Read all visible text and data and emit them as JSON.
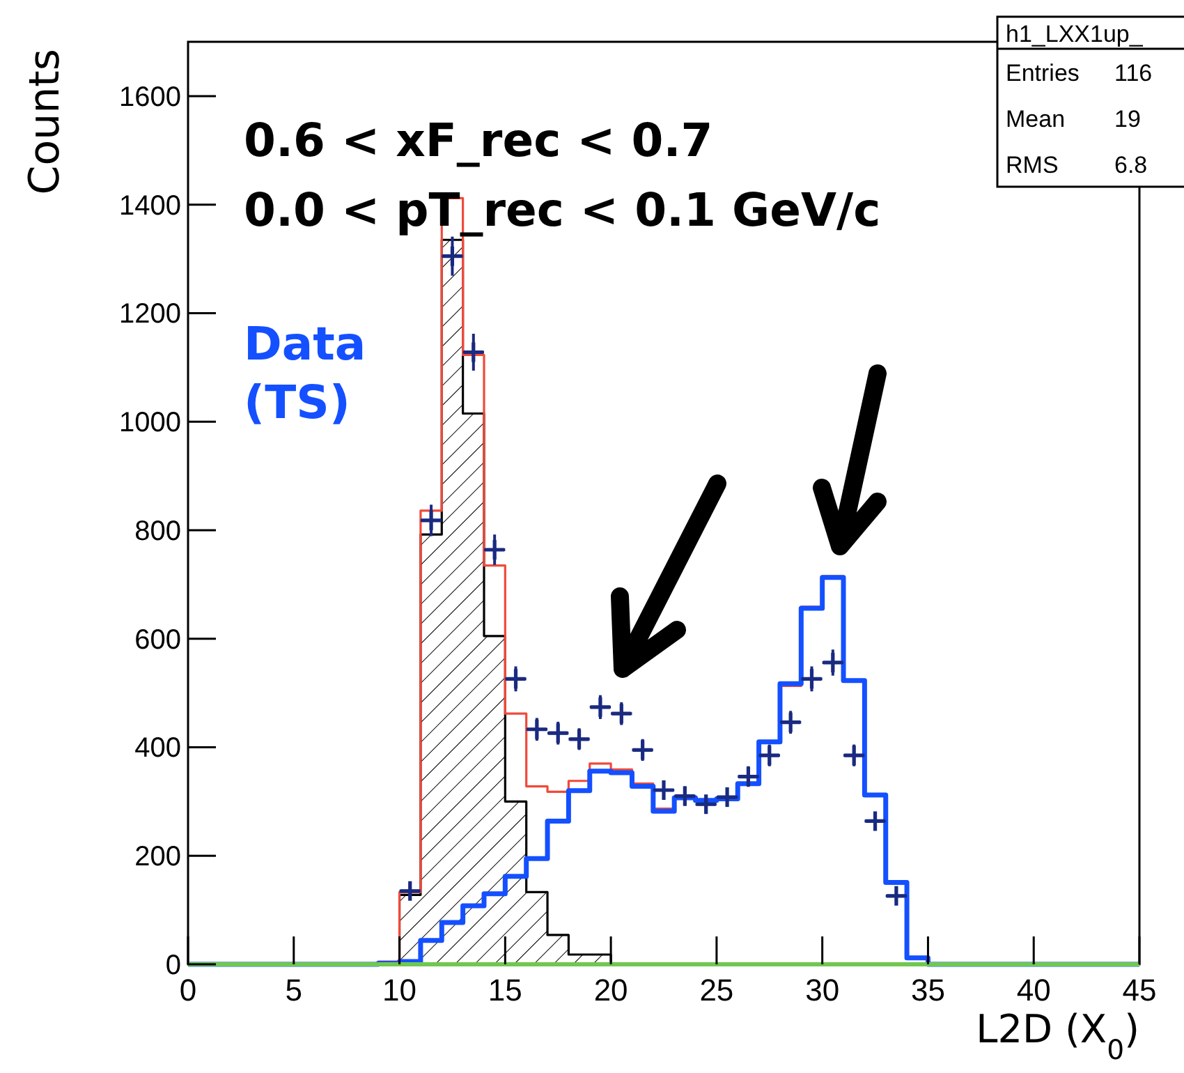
{
  "chart_data": {
    "type": "histogram",
    "xlabel": "L2D (X$_{0}$)",
    "ylabel": "Counts",
    "bins": [
      0,
      1,
      2,
      3,
      4,
      5,
      6,
      7,
      8,
      9,
      10,
      11,
      12,
      13,
      14,
      15,
      16,
      17,
      18,
      19,
      20,
      21,
      22,
      23,
      24,
      25,
      26,
      27,
      28,
      29,
      30,
      31,
      32,
      33,
      34,
      35,
      36,
      37,
      38,
      39,
      40,
      41,
      42,
      43,
      44,
      45
    ],
    "xlim": [
      0,
      45
    ],
    "xticks": [
      0,
      5,
      10,
      15,
      20,
      25,
      30,
      35,
      40,
      45
    ],
    "ylim": [
      0,
      1700
    ],
    "yticks": [
      0,
      200,
      400,
      600,
      800,
      1000,
      1200,
      1400,
      1600
    ],
    "grid": false,
    "series": [
      {
        "color": "#000000",
        "values": [
          0,
          0,
          0,
          0,
          0,
          0,
          0,
          0,
          0,
          3,
          128,
          792,
          1335,
          1015,
          605,
          300,
          133,
          54,
          18,
          18,
          0,
          0,
          0,
          0,
          0,
          0,
          0,
          0,
          0,
          0,
          0,
          0,
          0,
          0,
          0,
          0,
          0,
          0,
          0,
          0,
          0,
          0,
          0,
          0,
          0
        ]
      },
      {
        "color": "#f04a3a",
        "values": [
          0,
          0,
          0,
          0,
          0,
          0,
          0,
          0,
          0,
          5,
          133,
          836,
          1412,
          1123,
          735,
          462,
          328,
          318,
          338,
          370,
          359,
          333,
          287,
          308,
          302,
          305,
          333,
          410,
          513,
          659,
          715,
          523,
          313,
          151,
          10,
          0,
          0,
          0,
          0,
          0,
          0,
          0,
          0,
          0,
          0
        ]
      },
      {
        "color": "#1450ff",
        "values": [
          0,
          0,
          0,
          0,
          0,
          0,
          0,
          0,
          0,
          2,
          5,
          44,
          77,
          108,
          130,
          162,
          195,
          264,
          320,
          356,
          353,
          328,
          282,
          307,
          302,
          305,
          333,
          410,
          517,
          656,
          713,
          523,
          312,
          151,
          12,
          0,
          0,
          0,
          0,
          0,
          0,
          0,
          0,
          0,
          0
        ]
      },
      {
        "color": "#70c850",
        "values": [
          0,
          0,
          0,
          0,
          0,
          0,
          0,
          0,
          0,
          0,
          0,
          0,
          0,
          0,
          0,
          0,
          0,
          0,
          0,
          0,
          0,
          0,
          0,
          0,
          0,
          0,
          0,
          0,
          0,
          0,
          0,
          0,
          0,
          0,
          0,
          0,
          0,
          0,
          0,
          0,
          0,
          0,
          0,
          0,
          0
        ]
      },
      {
        "type": "scatter",
        "color": "#1a2a80",
        "marker": "cross",
        "x": [
          10.5,
          11.5,
          12.5,
          13.5,
          14.5,
          15.5,
          16.5,
          17.5,
          18.5,
          19.5,
          20.5,
          21.5,
          22.5,
          23.5,
          24.5,
          25.5,
          26.5,
          27.5,
          28.5,
          29.5,
          30.5,
          31.5,
          32.5,
          33.5
        ],
        "values": [
          135,
          818,
          1305,
          1128,
          764,
          526,
          433,
          426,
          415,
          474,
          462,
          395,
          321,
          310,
          295,
          308,
          346,
          385,
          446,
          526,
          556,
          385,
          264,
          126
        ],
        "errors": [
          12,
          29,
          36,
          34,
          28,
          23,
          21,
          21,
          20,
          22,
          21,
          20,
          18,
          18,
          17,
          18,
          19,
          20,
          21,
          23,
          24,
          20,
          16,
          11
        ],
        "xerrors": [
          0.5,
          0.5,
          0.5,
          0.5,
          0.5,
          0.5,
          0.5,
          0.5,
          0.5,
          0.5,
          0.5,
          0.5,
          0.5,
          0.5,
          0.5,
          0.5,
          0.5,
          0.5,
          0.5,
          0.5,
          0.5,
          0.5,
          0.5,
          0.5
        ]
      }
    ],
    "annotations": [
      "0.6 < xF_rec < 0.7",
      "0.0 < pT_rec < 0.1 GeV/c",
      "Data (TS)",
      "h1_LXX1up_",
      "Entries",
      "116",
      "Mean",
      "19",
      "RMS",
      "6.8"
    ]
  }
}
